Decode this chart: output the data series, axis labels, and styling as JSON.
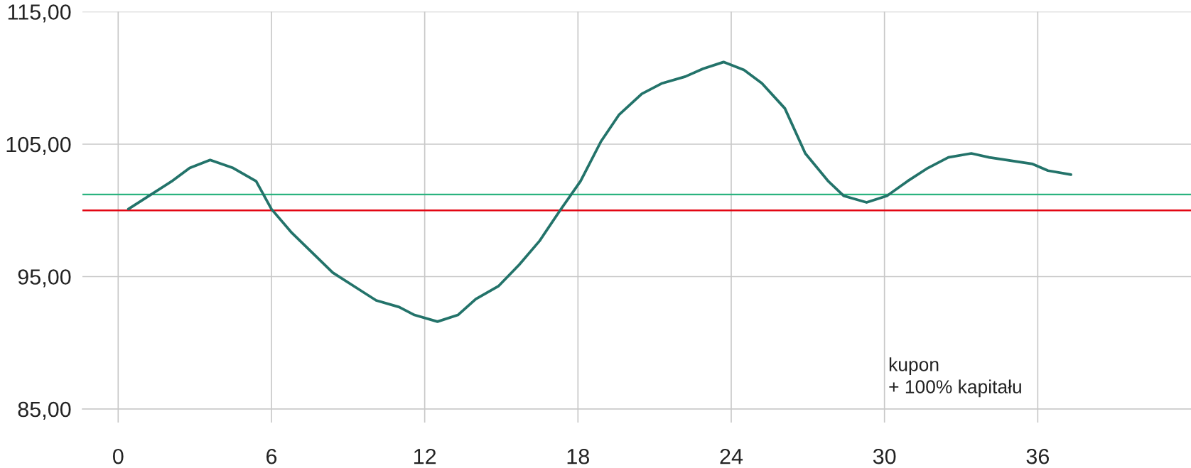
{
  "chart_data": {
    "type": "line",
    "x": [
      0.4,
      2.1,
      2.8,
      3.6,
      4.5,
      5.4,
      6.0,
      6.8,
      7.6,
      8.4,
      10.1,
      11.0,
      11.6,
      12.5,
      13.3,
      14.0,
      14.9,
      15.7,
      16.5,
      17.3,
      18.1,
      18.9,
      19.6,
      20.5,
      21.3,
      22.2,
      22.9,
      23.7,
      24.5,
      25.2,
      26.1,
      26.9,
      27.8,
      28.4,
      29.3,
      30.1,
      30.9,
      31.7,
      32.5,
      33.4,
      34.1,
      35.8,
      36.4,
      37.3
    ],
    "values": [
      100.1,
      102.2,
      103.2,
      103.8,
      103.2,
      102.2,
      100.1,
      98.3,
      96.8,
      95.3,
      93.2,
      92.7,
      92.1,
      91.6,
      92.1,
      93.3,
      94.3,
      95.9,
      97.7,
      100.0,
      102.2,
      105.2,
      107.2,
      108.8,
      109.6,
      110.1,
      110.7,
      111.2,
      110.6,
      109.6,
      107.7,
      104.3,
      102.2,
      101.1,
      100.6,
      101.1,
      102.2,
      103.2,
      104.0,
      104.3,
      104.0,
      103.5,
      103.0,
      102.7
    ],
    "color": "#23736a",
    "xlim": [
      -1.4,
      42
    ],
    "ylim": [
      85,
      115
    ],
    "xticks": [
      0,
      6,
      12,
      18,
      24,
      30,
      36
    ],
    "yticks": [
      {
        "value": 85,
        "label": "85,00"
      },
      {
        "value": 95,
        "label": "95,00"
      },
      {
        "value": 105,
        "label": "105,00"
      },
      {
        "value": 115,
        "label": "115,00"
      }
    ],
    "grid": true,
    "ref_lines": [
      {
        "axis": "y",
        "value": 101.2,
        "color": "#2bb37f"
      },
      {
        "axis": "y",
        "value": 100,
        "color": "#e30613"
      }
    ],
    "annotations": [
      "kupon\n+ 100% kapitału"
    ]
  }
}
